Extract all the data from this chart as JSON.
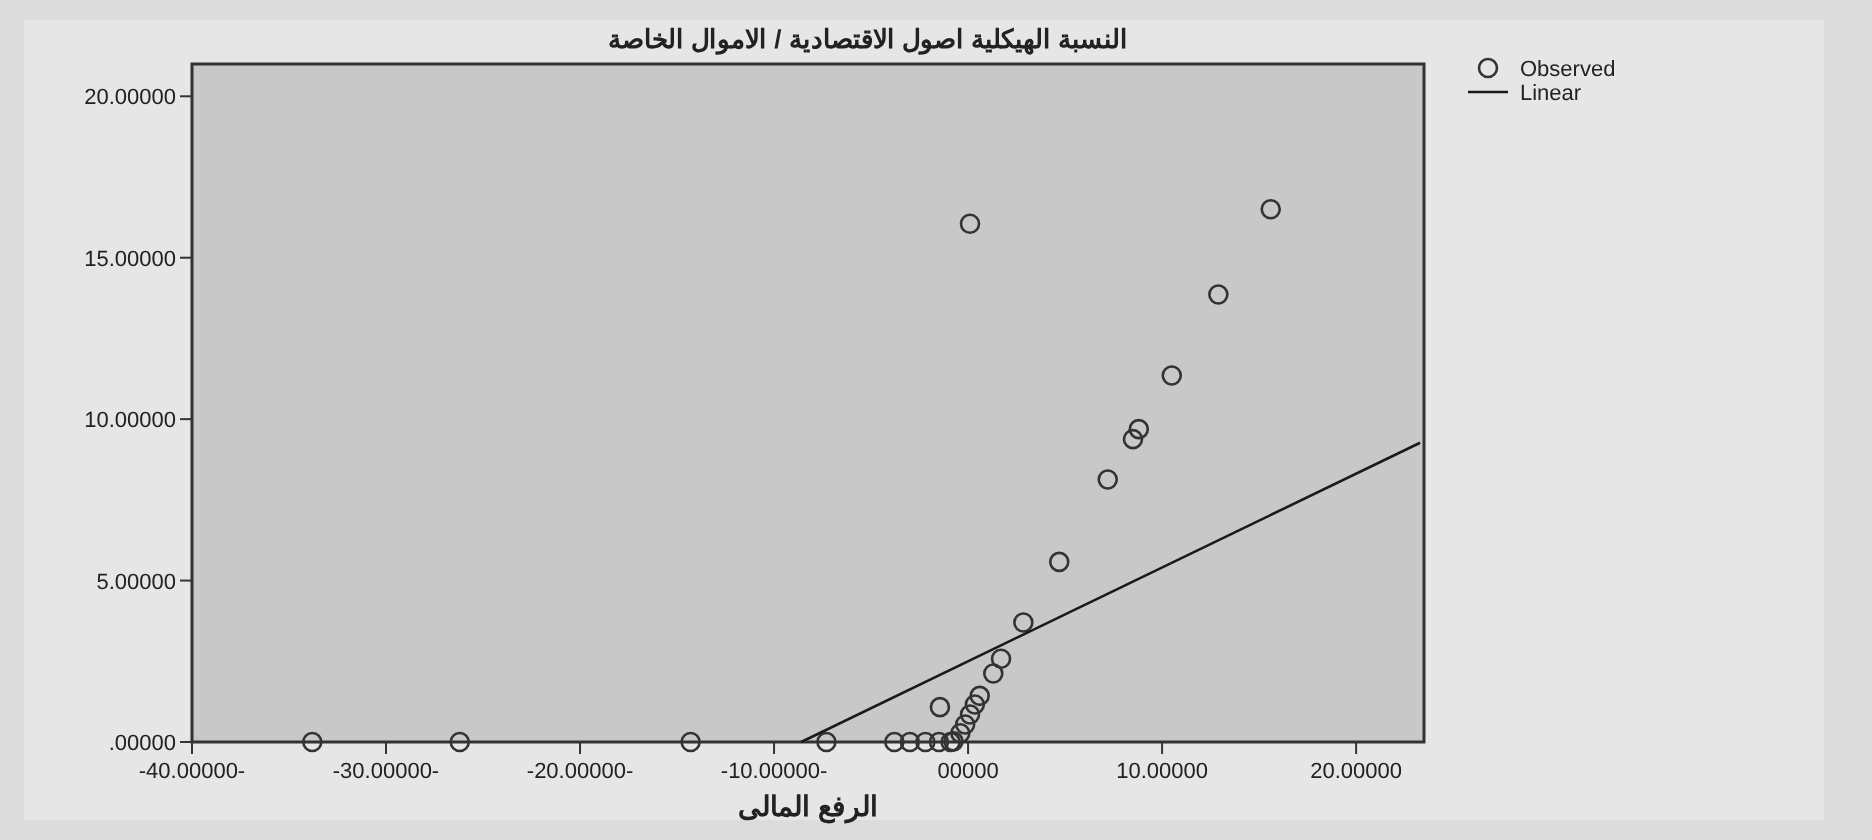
{
  "chart_data": {
    "type": "scatter",
    "title": "النسبة الهيكلية  اصول الاقتصادية / الاموال الخاصة",
    "xlabel": "الرفع المالى",
    "xlim": [
      -40,
      23.5
    ],
    "ylim": [
      0,
      21
    ],
    "xticks": [
      {
        "value": -40,
        "label": "-40.00000-"
      },
      {
        "value": -30,
        "label": "-30.00000-"
      },
      {
        "value": -20,
        "label": "-20.00000-"
      },
      {
        "value": -10,
        "label": "-10.00000-"
      },
      {
        "value": 0,
        "label": "00000"
      },
      {
        "value": 10,
        "label": "10.00000"
      },
      {
        "value": 20,
        "label": "20.00000"
      }
    ],
    "yticks": [
      {
        "value": 0,
        "label": ".00000"
      },
      {
        "value": 5,
        "label": "5.00000"
      },
      {
        "value": 10,
        "label": "10.00000"
      },
      {
        "value": 15,
        "label": "15.00000"
      },
      {
        "value": 20,
        "label": "20.00000"
      }
    ],
    "grid": false,
    "legend": "top right",
    "series": [
      {
        "type": "scatter",
        "name": "Observed",
        "color": "#333333",
        "marker": "circle",
        "x": [
          -33.8,
          -26.2,
          -14.3,
          -7.3,
          -3.8,
          -3.0,
          -2.2,
          -1.5,
          -0.9,
          -0.75,
          -0.4,
          -0.15,
          0.1,
          0.35,
          0.6,
          -1.45,
          1.3,
          1.7,
          2.85,
          4.7,
          7.2,
          8.5,
          8.8,
          10.5,
          12.9,
          15.6,
          0.1
        ],
        "values": [
          0,
          0,
          0,
          0,
          0,
          0,
          0,
          0,
          0,
          0.02,
          0.27,
          0.54,
          0.85,
          1.16,
          1.43,
          1.08,
          2.12,
          2.58,
          3.7,
          5.58,
          8.13,
          9.38,
          9.69,
          11.35,
          13.86,
          16.5,
          16.05
        ]
      },
      {
        "type": "line",
        "name": "Linear",
        "color": "#1a1a1a",
        "marker": "none",
        "x": [
          -8.6,
          23.3
        ],
        "values": [
          0,
          9.27
        ]
      }
    ]
  }
}
